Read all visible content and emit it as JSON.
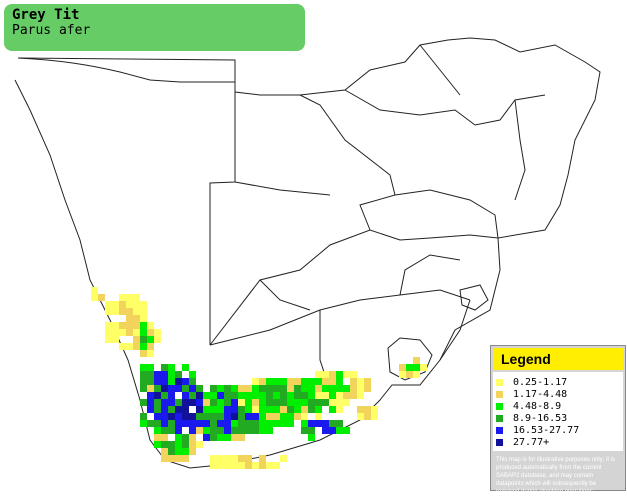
{
  "title": {
    "common_name": "Grey Tit",
    "scientific_name": "Parus afer"
  },
  "legend": {
    "heading": "Legend",
    "items": [
      {
        "label": "0.25-1.17",
        "color": "#ffff66"
      },
      {
        "label": "1.17-4.48",
        "color": "#f2d45c"
      },
      {
        "label": "4.48-8.9",
        "color": "#00ee00"
      },
      {
        "label": "8.9-16.53",
        "color": "#22aa22"
      },
      {
        "label": "16.53-27.77",
        "color": "#1a1aee"
      },
      {
        "label": "27.77+",
        "color": "#111199"
      }
    ],
    "disclaimer": "This map is for illustrative purposes only; it is produced automatically from the current SABAP2 database, and may contain datapoints which will subsequently be removed during checking operations."
  },
  "colors": {
    "title_background": "#66cc66",
    "legend_header": "#ffee00",
    "border_lines": "#222222"
  }
}
